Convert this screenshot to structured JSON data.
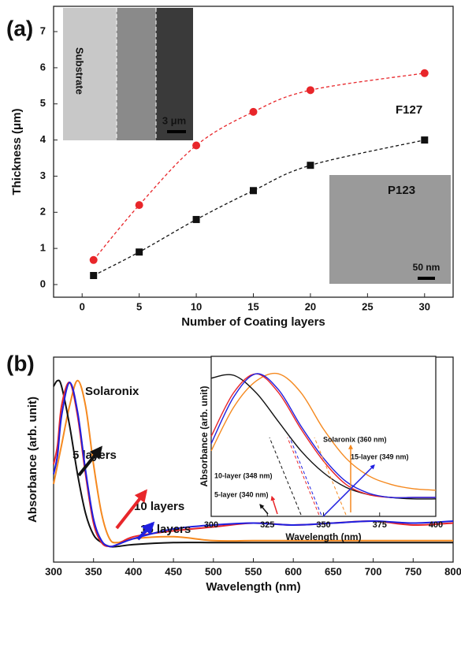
{
  "chart_data": [
    {
      "type": "scatter",
      "panel_label": "(a)",
      "x_label": "Number of Coating layers",
      "y_label": "Thickness (μm)",
      "xlim": [
        -2.5,
        32.5
      ],
      "ylim": [
        -0.35,
        7.7
      ],
      "xticks": [
        0,
        5,
        10,
        15,
        20,
        25,
        30
      ],
      "yticks": [
        0,
        1,
        2,
        3,
        4,
        5,
        6,
        7
      ],
      "x": [
        1,
        5,
        10,
        15,
        20,
        30
      ],
      "series": [
        {
          "name": "F127",
          "color": "#e8262a",
          "marker": "circle",
          "values": [
            0.68,
            2.2,
            3.85,
            4.78,
            5.38,
            5.85
          ]
        },
        {
          "name": "P123",
          "color": "#111111",
          "marker": "square",
          "values": [
            0.25,
            0.9,
            1.8,
            2.6,
            3.3,
            4.0
          ]
        }
      ],
      "inset_labels": [
        "Substrate",
        "3 μm",
        "50 nm"
      ]
    },
    {
      "type": "line",
      "panel_label": "(b)",
      "x_label": "Wavelength (nm)",
      "y_label": "Absorbance (arb. unit)",
      "xlim": [
        300,
        800
      ],
      "ylim": [
        0,
        1.05
      ],
      "xticks": [
        300,
        350,
        400,
        450,
        500,
        550,
        600,
        650,
        700,
        750,
        800
      ],
      "x": [
        300,
        305,
        310,
        320,
        330,
        340,
        350,
        360,
        370,
        380,
        400,
        450,
        500,
        550,
        600,
        650,
        700,
        750,
        800
      ],
      "series": [
        {
          "name": "Solaronix",
          "color": "#f5891f",
          "values": [
            0.4,
            0.5,
            0.6,
            0.8,
            0.93,
            0.8,
            0.5,
            0.25,
            0.12,
            0.1,
            0.12,
            0.13,
            0.11,
            0.11,
            0.11,
            0.11,
            0.11,
            0.11,
            0.11
          ]
        },
        {
          "name": "5 layers",
          "color": "#111111",
          "values": [
            0.9,
            0.93,
            0.9,
            0.7,
            0.45,
            0.25,
            0.14,
            0.1,
            0.08,
            0.08,
            0.09,
            0.1,
            0.1,
            0.1,
            0.1,
            0.1,
            0.1,
            0.1,
            0.1
          ]
        },
        {
          "name": "10 layers",
          "color": "#e8262a",
          "values": [
            0.5,
            0.6,
            0.8,
            0.92,
            0.75,
            0.45,
            0.2,
            0.1,
            0.08,
            0.09,
            0.13,
            0.16,
            0.18,
            0.2,
            0.19,
            0.2,
            0.21,
            0.19,
            0.2
          ]
        },
        {
          "name": "15 layers",
          "color": "#1f1fe0",
          "values": [
            0.45,
            0.55,
            0.75,
            0.92,
            0.77,
            0.47,
            0.22,
            0.11,
            0.08,
            0.09,
            0.12,
            0.17,
            0.19,
            0.2,
            0.19,
            0.2,
            0.21,
            0.2,
            0.21
          ]
        }
      ]
    },
    {
      "type": "line",
      "x_label": "Wavelength (nm)",
      "y_label": "Absorbance (arb. unit)",
      "xlim": [
        300,
        400
      ],
      "ylim": [
        0,
        1.1
      ],
      "xticks": [
        300,
        325,
        350,
        375,
        400
      ],
      "x": [
        300,
        310,
        320,
        330,
        340,
        350,
        360,
        370,
        380,
        390,
        400
      ],
      "series": [
        {
          "color": "#f5891f",
          "values": [
            0.45,
            0.75,
            0.93,
            0.98,
            0.85,
            0.6,
            0.4,
            0.28,
            0.22,
            0.19,
            0.18
          ]
        },
        {
          "color": "#111111",
          "values": [
            0.95,
            0.97,
            0.85,
            0.65,
            0.45,
            0.3,
            0.2,
            0.15,
            0.13,
            0.12,
            0.12
          ]
        },
        {
          "color": "#e8262a",
          "values": [
            0.55,
            0.85,
            0.98,
            0.85,
            0.6,
            0.38,
            0.22,
            0.15,
            0.13,
            0.13,
            0.13
          ]
        },
        {
          "color": "#1f1fe0",
          "values": [
            0.5,
            0.82,
            0.98,
            0.87,
            0.62,
            0.4,
            0.24,
            0.16,
            0.13,
            0.13,
            0.13
          ]
        }
      ],
      "annotations": [
        "Solaronix (360 nm)",
        "15-layer (349 nm)",
        "10-layer (348 nm)",
        "5-layer (340 nm)"
      ]
    }
  ]
}
